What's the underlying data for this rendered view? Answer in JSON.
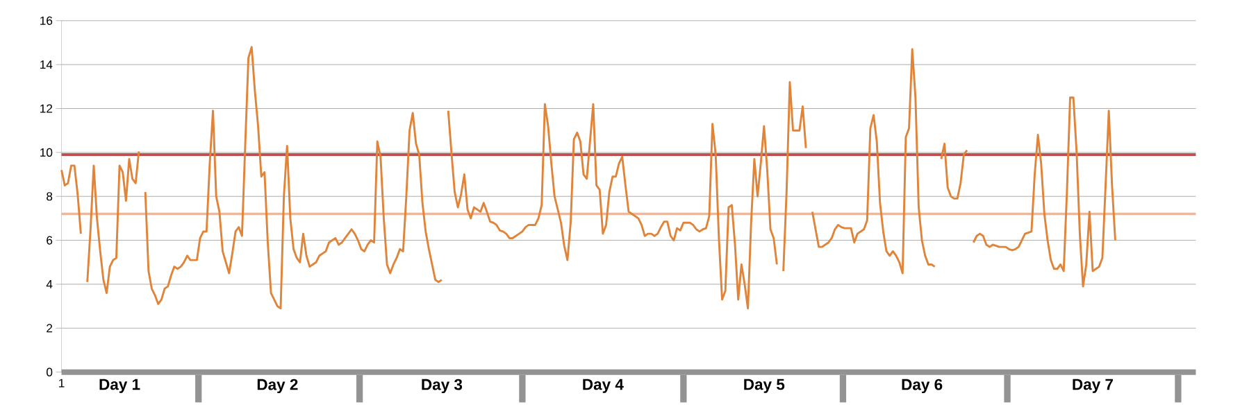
{
  "chart_data": {
    "type": "line",
    "color": "#e0843a",
    "line_style": "solid",
    "marker": "none",
    "grid": "y",
    "ylim": [
      0,
      16
    ],
    "yticks": [
      0,
      2,
      4,
      6,
      8,
      10,
      12,
      14,
      16
    ],
    "ref_lines": [
      {
        "axis": "y",
        "value": 9.9,
        "color": "#c0504d"
      },
      {
        "axis": "y",
        "value": 7.2,
        "color": "#f7b58f"
      }
    ],
    "categories": [
      "1",
      null,
      null,
      null,
      null,
      null,
      null,
      null,
      null,
      null,
      null,
      null,
      null,
      null,
      null,
      null,
      null,
      null,
      "Day 1",
      null,
      null,
      null,
      null,
      null,
      null,
      null,
      null,
      null,
      null,
      null,
      null,
      null,
      null,
      null,
      null,
      null,
      null,
      null,
      null,
      null,
      null,
      null,
      null,
      null,
      null,
      null,
      null,
      null,
      null,
      null,
      null,
      null,
      null,
      null,
      null,
      null,
      null,
      null,
      null,
      null,
      null,
      null,
      null,
      null,
      null,
      null,
      null,
      "Day 2",
      null,
      null,
      null,
      null,
      null,
      null,
      null,
      null,
      null,
      null,
      null,
      null,
      null,
      null,
      null,
      null,
      null,
      null,
      null,
      null,
      null,
      null,
      null,
      null,
      null,
      null,
      null,
      null,
      null,
      null,
      null,
      null,
      null,
      null,
      null,
      null,
      null,
      null,
      null,
      null,
      null,
      null,
      null,
      null,
      null,
      null,
      null,
      null,
      null,
      null,
      "Day 3",
      null,
      null,
      null,
      null,
      null,
      null,
      null,
      null,
      null,
      null,
      null,
      null,
      null,
      null,
      null,
      null,
      null,
      null,
      null,
      null,
      null,
      null,
      null,
      null,
      null,
      null,
      null,
      null,
      null,
      null,
      null,
      null,
      null,
      null,
      null,
      null,
      null,
      null,
      null,
      null,
      null,
      null,
      null,
      null,
      null,
      null,
      null,
      null,
      null,
      "Day 4",
      null,
      null,
      null,
      null,
      null,
      null,
      null,
      null,
      null,
      null,
      null,
      null,
      null,
      null,
      null,
      null,
      null,
      null,
      null,
      null,
      null,
      null,
      null,
      null,
      null,
      null,
      null,
      null,
      null,
      null,
      null,
      null,
      null,
      null,
      null,
      null,
      null,
      null,
      null,
      null,
      null,
      null,
      null,
      null,
      null,
      null,
      null,
      null,
      null,
      "Day 5",
      null,
      null,
      null,
      null,
      null,
      null,
      null,
      null,
      null,
      null,
      null,
      null,
      null,
      null,
      null,
      null,
      null,
      null,
      null,
      null,
      null,
      null,
      null,
      null,
      null,
      null,
      null,
      null,
      null,
      null,
      null,
      null,
      null,
      null,
      null,
      null,
      null,
      null,
      null,
      null,
      null,
      null,
      null,
      null,
      null,
      null,
      null,
      null,
      "Day 6",
      null,
      null,
      null,
      null,
      null,
      null,
      null,
      null,
      null,
      null,
      null,
      null,
      null,
      null,
      null,
      null,
      null,
      null,
      null,
      null,
      null,
      null,
      null,
      null,
      null,
      null,
      null,
      null,
      null,
      null,
      null,
      null,
      null,
      null,
      null,
      null,
      null,
      null,
      null,
      null,
      null,
      null,
      null,
      null,
      null,
      null,
      null,
      null,
      null,
      null,
      null,
      null,
      "Day 7",
      null,
      null,
      null,
      null,
      null,
      null,
      null,
      null,
      null,
      null,
      null,
      null,
      null,
      null,
      null,
      null,
      null,
      null,
      null,
      null,
      null,
      null,
      null,
      null,
      null,
      null,
      null,
      null,
      null,
      null,
      null,
      null
    ],
    "values": [
      9.2,
      8.5,
      8.6,
      9.4,
      9.4,
      8.1,
      6.3,
      null,
      4.1,
      6.5,
      9.4,
      7.0,
      5.5,
      4.2,
      3.6,
      4.8,
      5.1,
      5.2,
      9.4,
      9.1,
      7.8,
      9.7,
      8.8,
      8.6,
      10.05,
      null,
      8.2,
      4.6,
      3.8,
      3.5,
      3.1,
      3.3,
      3.8,
      3.9,
      4.4,
      4.8,
      4.7,
      4.8,
      5.0,
      5.3,
      5.1,
      5.1,
      5.1,
      6.1,
      6.4,
      6.4,
      9.5,
      11.9,
      8.0,
      7.3,
      5.5,
      5.0,
      4.5,
      5.4,
      6.4,
      6.6,
      6.2,
      10.3,
      14.3,
      14.8,
      12.8,
      11.2,
      8.9,
      9.1,
      5.9,
      3.6,
      3.3,
      3.0,
      2.9,
      8.0,
      10.3,
      7.0,
      5.6,
      5.2,
      5.0,
      6.3,
      5.3,
      4.8,
      4.9,
      5.0,
      5.3,
      5.4,
      5.5,
      5.9,
      6.0,
      6.1,
      5.8,
      5.9,
      6.1,
      6.3,
      6.5,
      6.3,
      6.0,
      5.6,
      5.5,
      5.8,
      6.0,
      5.9,
      10.5,
      9.8,
      7.0,
      4.9,
      4.5,
      4.9,
      5.2,
      5.6,
      5.5,
      8.0,
      11.0,
      11.8,
      10.4,
      9.9,
      7.7,
      6.4,
      5.6,
      4.9,
      4.2,
      4.1,
      4.2,
      null,
      11.9,
      10.0,
      8.2,
      7.5,
      8.1,
      9.0,
      7.4,
      7.0,
      7.5,
      7.4,
      7.3,
      7.7,
      7.3,
      6.85,
      6.8,
      6.7,
      6.45,
      6.4,
      6.3,
      6.1,
      6.1,
      6.2,
      6.3,
      6.4,
      6.6,
      6.7,
      6.7,
      6.7,
      7.0,
      7.6,
      12.2,
      11.2,
      9.5,
      8.0,
      7.4,
      6.8,
      5.75,
      5.1,
      6.8,
      10.6,
      10.9,
      10.5,
      9.0,
      8.8,
      10.5,
      12.2,
      8.5,
      8.3,
      6.3,
      6.7,
      8.2,
      8.9,
      8.9,
      9.5,
      9.8,
      8.5,
      7.3,
      7.2,
      7.1,
      7.0,
      6.7,
      6.2,
      6.3,
      6.3,
      6.2,
      6.3,
      6.6,
      6.85,
      6.85,
      6.2,
      6.0,
      6.55,
      6.45,
      6.8,
      6.8,
      6.8,
      6.7,
      6.5,
      6.4,
      6.5,
      6.55,
      7.1,
      11.3,
      9.9,
      6.1,
      3.3,
      3.7,
      7.5,
      7.6,
      5.8,
      3.3,
      4.9,
      4.0,
      2.9,
      6.8,
      9.7,
      8.0,
      9.5,
      11.2,
      9.2,
      6.5,
      6.1,
      4.9,
      null,
      4.6,
      8.2,
      13.2,
      11.0,
      11.0,
      11.0,
      12.1,
      10.2,
      null,
      7.3,
      6.5,
      5.7,
      5.7,
      5.8,
      5.9,
      6.1,
      6.5,
      6.7,
      6.6,
      6.55,
      6.55,
      6.55,
      5.9,
      6.3,
      6.4,
      6.5,
      6.9,
      11.1,
      11.7,
      10.5,
      7.7,
      6.4,
      5.5,
      5.3,
      5.5,
      5.3,
      5.0,
      4.5,
      10.7,
      11.1,
      14.7,
      12.5,
      7.5,
      6.0,
      5.3,
      4.9,
      4.9,
      4.8,
      null,
      9.7,
      10.4,
      8.4,
      8.0,
      7.9,
      7.9,
      8.6,
      9.9,
      10.1,
      null,
      5.9,
      6.2,
      6.3,
      6.2,
      5.8,
      5.7,
      5.8,
      5.75,
      5.7,
      5.7,
      5.7,
      5.6,
      5.55,
      5.6,
      5.7,
      6.0,
      6.3,
      6.35,
      6.4,
      9.0,
      10.8,
      9.5,
      7.2,
      6.0,
      5.1,
      4.7,
      4.7,
      4.9,
      4.6,
      8.2,
      12.5,
      12.5,
      10.05,
      6.3,
      3.9,
      4.9,
      7.3,
      4.6,
      4.7,
      4.8,
      5.2,
      8.5,
      11.9,
      8.5,
      6.0,
      null,
      null,
      null,
      null,
      null,
      null,
      null,
      null,
      null,
      null,
      null,
      null,
      null,
      null,
      null,
      null,
      null,
      null,
      null,
      null,
      null,
      null,
      null,
      null,
      null
    ]
  }
}
